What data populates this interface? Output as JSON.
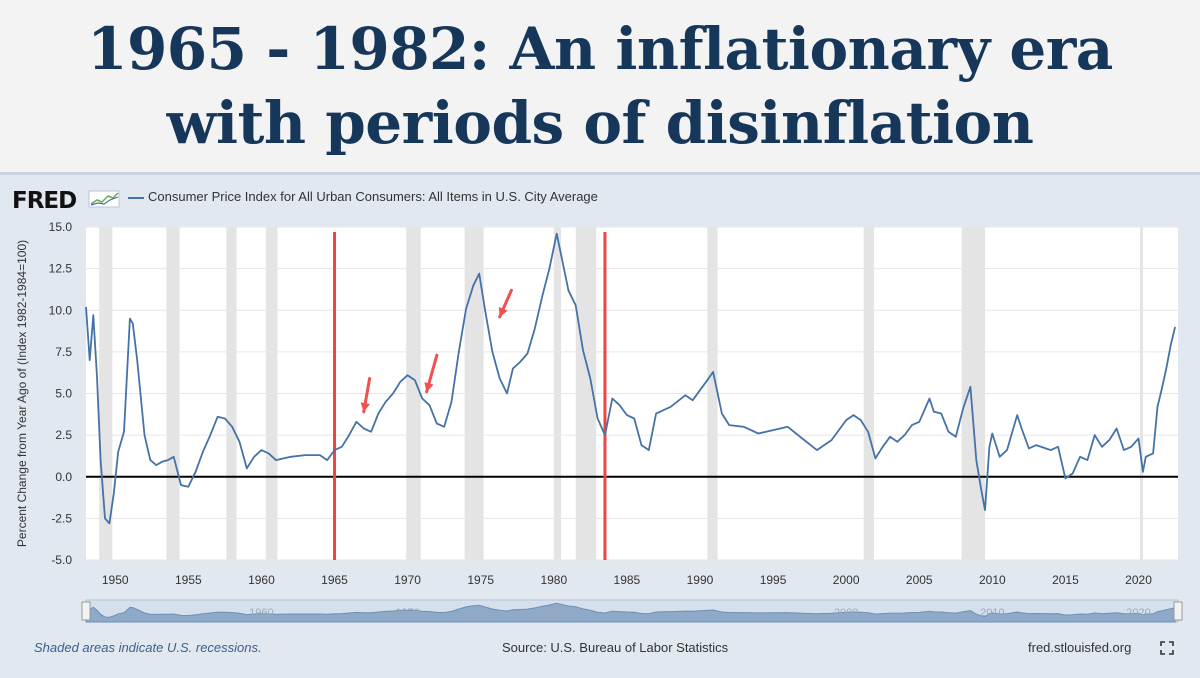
{
  "page": {
    "title_line1": "1965 - 1982: An inflationary era",
    "title_line2": "with periods of disinflation",
    "title_color": "#16375a"
  },
  "fred": {
    "logo_text": "FRED",
    "series_name": "Consumer Price Index for All Urban Consumers: All Items in U.S. City Average",
    "recession_note": "Shaded areas indicate U.S. recessions.",
    "source": "Source: U.S. Bureau of Labor Statistics",
    "site": "fred.stlouisfed.org",
    "series_color": "#4572a7",
    "marker_color": "#ee4444",
    "fullscreen_icon": "fullscreen-icon"
  },
  "chart_data": {
    "type": "line",
    "title": "Consumer Price Index for All Urban Consumers: All Items in U.S. City Average",
    "xlabel": "",
    "ylabel": "Percent Change from Year Ago of (Index 1982-1984=100)",
    "xlim": [
      1948,
      2022.7
    ],
    "ylim": [
      -5,
      15
    ],
    "yticks": [
      "-5.0",
      "-2.5",
      "0.0",
      "2.5",
      "5.0",
      "7.5",
      "10.0",
      "12.5",
      "15.0"
    ],
    "xticks": [
      "1950",
      "1955",
      "1960",
      "1965",
      "1970",
      "1975",
      "1980",
      "1985",
      "1990",
      "1995",
      "2000",
      "2005",
      "2010",
      "2015",
      "2020"
    ],
    "navigator_labels": [
      "1960",
      "1970",
      "1980",
      "2000",
      "2010",
      "2020"
    ],
    "recessions": [
      [
        1948.9,
        1949.8
      ],
      [
        1953.5,
        1954.4
      ],
      [
        1957.6,
        1958.3
      ],
      [
        1960.3,
        1961.1
      ],
      [
        1969.9,
        1970.9
      ],
      [
        1973.9,
        1975.2
      ],
      [
        1980.0,
        1980.5
      ],
      [
        1981.5,
        1982.9
      ],
      [
        1990.5,
        1991.2
      ],
      [
        2001.2,
        2001.9
      ],
      [
        2007.9,
        2009.5
      ],
      [
        2020.1,
        2020.3
      ]
    ],
    "vertical_markers": [
      1965,
      1983.5
    ],
    "arrows": [
      [
        1967.4,
        5.9,
        1967.0,
        3.9
      ],
      [
        1972.0,
        7.3,
        1971.3,
        5.1
      ],
      [
        1977.1,
        11.2,
        1976.3,
        9.6
      ]
    ],
    "series": [
      {
        "name": "Consumer Price Index for All Urban Consumers: All Items in U.S. City Average",
        "x": [
          1948.0,
          1948.25,
          1948.5,
          1948.75,
          1949.0,
          1949.3,
          1949.6,
          1949.9,
          1950.2,
          1950.6,
          1951.0,
          1951.2,
          1951.5,
          1952.0,
          1952.4,
          1952.8,
          1953.2,
          1953.6,
          1954.0,
          1954.5,
          1955.0,
          1955.5,
          1956.0,
          1956.5,
          1957.0,
          1957.5,
          1958.0,
          1958.5,
          1959.0,
          1959.5,
          1960.0,
          1960.5,
          1961.0,
          1962.0,
          1963.0,
          1964.0,
          1964.5,
          1965.0,
          1965.5,
          1966.0,
          1966.5,
          1967.0,
          1967.5,
          1968.0,
          1968.5,
          1969.0,
          1969.5,
          1970.0,
          1970.5,
          1971.0,
          1971.5,
          1972.0,
          1972.5,
          1973.0,
          1973.5,
          1974.0,
          1974.5,
          1974.9,
          1975.3,
          1975.8,
          1976.3,
          1976.8,
          1977.2,
          1977.7,
          1978.2,
          1978.7,
          1979.2,
          1979.7,
          1980.2,
          1980.6,
          1981.0,
          1981.5,
          1982.0,
          1982.5,
          1983.0,
          1983.5,
          1984.0,
          1984.5,
          1985.0,
          1985.5,
          1986.0,
          1986.5,
          1987.0,
          1987.5,
          1988.0,
          1989.0,
          1989.5,
          1990.0,
          1990.5,
          1990.9,
          1991.5,
          1992.0,
          1993.0,
          1994.0,
          1995.0,
          1996.0,
          1997.0,
          1998.0,
          1999.0,
          2000.0,
          2000.5,
          2001.0,
          2001.5,
          2002.0,
          2002.5,
          2003.0,
          2003.5,
          2004.0,
          2004.5,
          2005.0,
          2005.7,
          2006.0,
          2006.5,
          2007.0,
          2007.5,
          2008.0,
          2008.5,
          2008.9,
          2009.2,
          2009.5,
          2009.8,
          2010.0,
          2010.5,
          2011.0,
          2011.7,
          2012.0,
          2012.5,
          2013.0,
          2014.0,
          2014.5,
          2015.0,
          2015.5,
          2016.0,
          2016.5,
          2017.0,
          2017.5,
          2018.0,
          2018.5,
          2019.0,
          2019.5,
          2020.0,
          2020.3,
          2020.5,
          2021.0,
          2021.3,
          2021.6,
          2021.9,
          2022.2,
          2022.5
        ],
        "values": [
          10.2,
          7.0,
          9.7,
          6.0,
          1.0,
          -2.5,
          -2.8,
          -1.0,
          1.5,
          2.7,
          9.5,
          9.2,
          7.0,
          2.5,
          1.0,
          0.7,
          0.9,
          1.0,
          1.2,
          -0.5,
          -0.6,
          0.3,
          1.5,
          2.5,
          3.6,
          3.5,
          3.0,
          2.1,
          0.5,
          1.2,
          1.6,
          1.4,
          1.0,
          1.2,
          1.3,
          1.3,
          1.0,
          1.6,
          1.8,
          2.5,
          3.3,
          2.9,
          2.7,
          3.8,
          4.5,
          5.0,
          5.7,
          6.1,
          5.8,
          4.7,
          4.3,
          3.2,
          3.0,
          4.5,
          7.5,
          10.1,
          11.5,
          12.2,
          10.0,
          7.5,
          5.9,
          5.0,
          6.5,
          6.9,
          7.4,
          8.9,
          10.8,
          12.5,
          14.6,
          12.9,
          11.2,
          10.3,
          7.6,
          5.9,
          3.5,
          2.5,
          4.7,
          4.3,
          3.7,
          3.5,
          1.9,
          1.6,
          3.8,
          4.0,
          4.2,
          4.9,
          4.6,
          5.2,
          5.8,
          6.3,
          3.8,
          3.1,
          3.0,
          2.6,
          2.8,
          3.0,
          2.3,
          1.6,
          2.2,
          3.4,
          3.7,
          3.4,
          2.7,
          1.1,
          1.8,
          2.4,
          2.1,
          2.5,
          3.1,
          3.3,
          4.7,
          3.9,
          3.8,
          2.7,
          2.4,
          4.1,
          5.4,
          1.0,
          -0.6,
          -2.0,
          1.8,
          2.6,
          1.2,
          1.6,
          3.7,
          2.9,
          1.7,
          1.9,
          1.6,
          1.8,
          -0.1,
          0.2,
          1.2,
          1.0,
          2.5,
          1.8,
          2.2,
          2.9,
          1.6,
          1.8,
          2.3,
          0.3,
          1.2,
          1.4,
          4.2,
          5.3,
          6.5,
          7.9,
          9.0
        ]
      }
    ]
  }
}
